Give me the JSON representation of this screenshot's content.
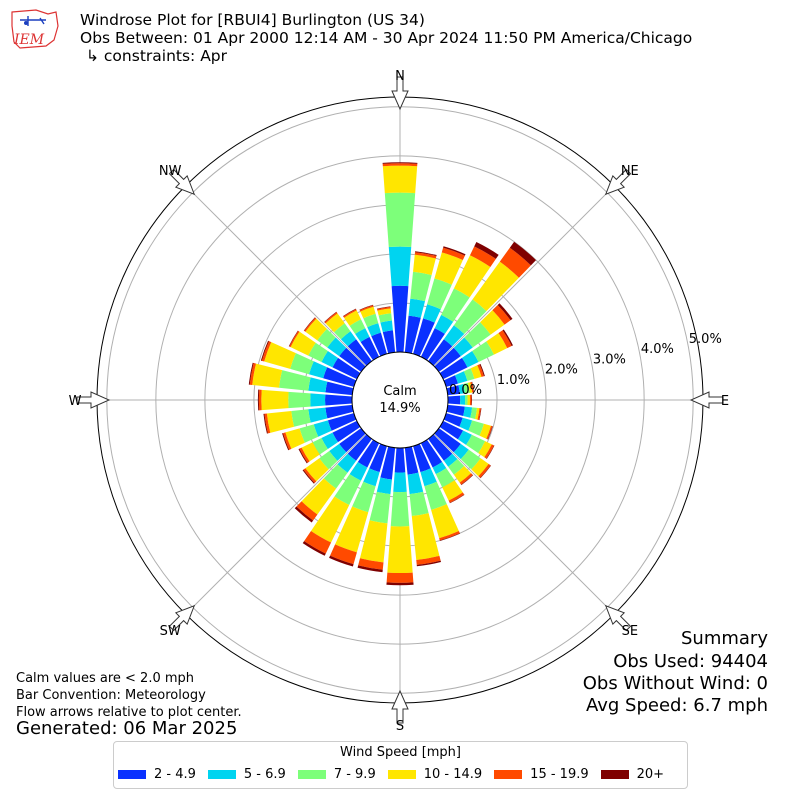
{
  "header": {
    "line1": "Windrose Plot for [RBUI4] Burlington (US 34)",
    "line2": "Obs Between: 01 Apr 2000 12:14 AM - 30 Apr 2024 11:50 PM America/Chicago",
    "line3": "↳ constraints: Apr",
    "logo_text": "IEM"
  },
  "notes": {
    "calm": "Calm values are < 2.0 mph",
    "bar": "Bar Convention: Meteorology",
    "flow": "Flow arrows relative to plot center.",
    "generated": "Generated: 06 Mar 2025"
  },
  "summary": {
    "title": "Summary",
    "obs_used": "Obs Used: 94404",
    "obs_without_wind": "Obs Without Wind: 0",
    "avg_speed": "Avg Speed: 6.7 mph"
  },
  "legend": {
    "title": "Wind Speed [mph]",
    "items": [
      {
        "label": "2 - 4.9",
        "color": "#0a31ff"
      },
      {
        "label": "5 - 6.9",
        "color": "#00d4f0"
      },
      {
        "label": "7 - 9.9",
        "color": "#7dff7a"
      },
      {
        "label": "10 - 14.9",
        "color": "#ffe600"
      },
      {
        "label": "15 - 19.9",
        "color": "#ff4a00"
      },
      {
        "label": "20+",
        "color": "#7f0000"
      }
    ]
  },
  "chart_data": {
    "type": "windrose",
    "calm_label": "Calm",
    "calm_value": "14.9%",
    "compass": [
      "N",
      "NE",
      "E",
      "SE",
      "S",
      "SW",
      "W",
      "NW"
    ],
    "ring_values": [
      0,
      1,
      2,
      3,
      4,
      5
    ],
    "ring_labels": [
      "0.0%",
      "1.0%",
      "2.0%",
      "3.0%",
      "4.0%",
      "5.0%"
    ],
    "r_max": 5.2,
    "directions_deg": [
      0,
      10,
      20,
      30,
      40,
      50,
      60,
      70,
      80,
      90,
      100,
      110,
      120,
      130,
      140,
      150,
      160,
      170,
      180,
      190,
      200,
      210,
      220,
      230,
      240,
      250,
      260,
      270,
      280,
      290,
      300,
      310,
      320,
      330,
      340,
      350
    ],
    "series": [
      {
        "name": "2 - 4.9",
        "color": "#0a31ff",
        "values": [
          1.35,
          0.75,
          0.75,
          0.65,
          0.55,
          0.55,
          0.55,
          0.25,
          0.25,
          0.25,
          0.35,
          0.35,
          0.45,
          0.55,
          0.55,
          0.55,
          0.55,
          0.55,
          0.5,
          0.65,
          0.55,
          0.55,
          0.55,
          0.55,
          0.55,
          0.55,
          0.55,
          0.55,
          0.55,
          0.65,
          0.55,
          0.55,
          0.55,
          0.45,
          0.45,
          0.45
        ]
      },
      {
        "name": "5 - 6.9",
        "color": "#00d4f0",
        "values": [
          0.8,
          0.35,
          0.3,
          0.3,
          0.35,
          0.3,
          0.25,
          0.2,
          0.1,
          0.1,
          0.15,
          0.2,
          0.2,
          0.2,
          0.15,
          0.15,
          0.3,
          0.4,
          0.4,
          0.3,
          0.3,
          0.3,
          0.3,
          0.25,
          0.25,
          0.3,
          0.35,
          0.3,
          0.35,
          0.3,
          0.25,
          0.3,
          0.2,
          0.2,
          0.2,
          0.2
        ]
      },
      {
        "name": "7 - 9.9",
        "color": "#7dff7a",
        "values": [
          1.1,
          0.55,
          0.55,
          0.6,
          0.65,
          0.45,
          0.35,
          0.15,
          0.1,
          0.05,
          0.1,
          0.25,
          0.3,
          0.3,
          0.2,
          0.3,
          0.5,
          0.45,
          0.7,
          0.6,
          0.55,
          0.55,
          0.4,
          0.25,
          0.2,
          0.3,
          0.35,
          0.45,
          0.6,
          0.4,
          0.3,
          0.25,
          0.2,
          0.2,
          0.2,
          0.15
        ]
      },
      {
        "name": "10 - 14.9",
        "color": "#ffe600",
        "values": [
          0.55,
          0.35,
          0.55,
          0.75,
          0.95,
          0.35,
          0.3,
          0.15,
          0.05,
          0.05,
          0.05,
          0.15,
          0.15,
          0.2,
          0.2,
          0.3,
          0.6,
          0.9,
          0.95,
          0.8,
          0.85,
          0.85,
          0.65,
          0.35,
          0.25,
          0.3,
          0.5,
          0.55,
          0.55,
          0.55,
          0.4,
          0.3,
          0.25,
          0.2,
          0.15,
          0.1
        ]
      },
      {
        "name": "15 - 19.9",
        "color": "#ff4a00",
        "values": [
          0.05,
          0.05,
          0.1,
          0.2,
          0.35,
          0.15,
          0.1,
          0.05,
          0.03,
          0.03,
          0.03,
          0.03,
          0.05,
          0.05,
          0.05,
          0.05,
          0.05,
          0.1,
          0.2,
          0.15,
          0.25,
          0.25,
          0.15,
          0.05,
          0.05,
          0.05,
          0.05,
          0.05,
          0.05,
          0.05,
          0.03,
          0.03,
          0.03,
          0.03,
          0.03,
          0.03
        ]
      },
      {
        "name": "20+",
        "color": "#7f0000",
        "values": [
          0.02,
          0.02,
          0.03,
          0.1,
          0.15,
          0.05,
          0.03,
          0.02,
          0.01,
          0.01,
          0.01,
          0.01,
          0.01,
          0.01,
          0.01,
          0.01,
          0.01,
          0.03,
          0.05,
          0.05,
          0.05,
          0.05,
          0.05,
          0.02,
          0.02,
          0.02,
          0.02,
          0.02,
          0.02,
          0.02,
          0.01,
          0.01,
          0.01,
          0.01,
          0.01,
          0.01
        ]
      }
    ]
  }
}
